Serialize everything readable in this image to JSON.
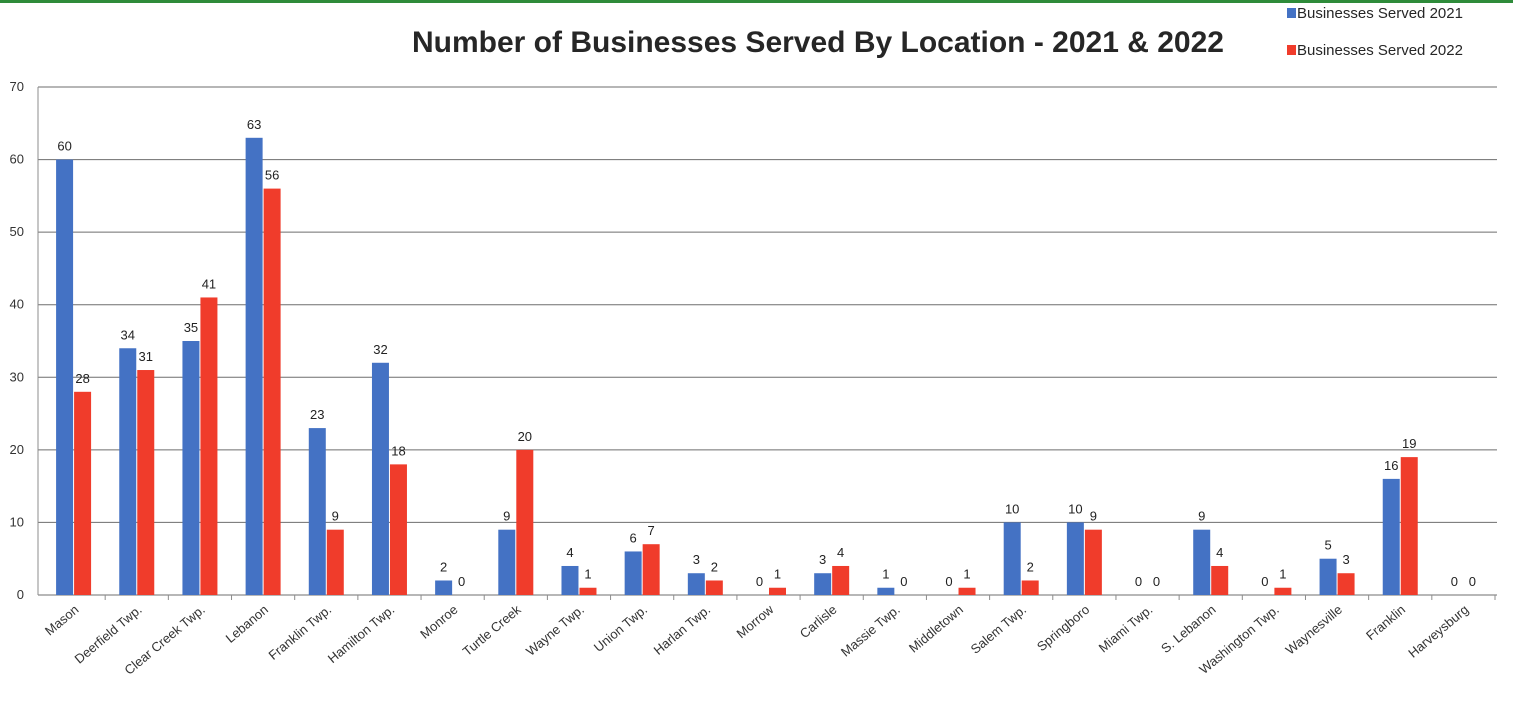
{
  "chart_data": {
    "type": "bar",
    "title": "Number of Businesses Served By Location - 2021 & 2022",
    "xlabel": "",
    "ylabel": "",
    "ylim": [
      0,
      70
    ],
    "yticks": [
      0,
      10,
      20,
      30,
      40,
      50,
      60,
      70
    ],
    "grid": true,
    "legend_position": "top-right",
    "categories": [
      "Mason",
      "Deerfield Twp.",
      "Clear Creek Twp.",
      "Lebanon",
      "Franklin Twp.",
      "Hamilton Twp.",
      "Monroe",
      "Turtle Creek",
      "Wayne Twp.",
      "Union Twp.",
      "Harlan Twp.",
      "Morrow",
      "Carlisle",
      "Massie Twp.",
      "Middletown",
      "Salem Twp.",
      "Springboro",
      "Miami Twp.",
      "S. Lebanon",
      "Washington Twp.",
      "Waynesville",
      "Franklin",
      "Harveysburg"
    ],
    "series": [
      {
        "name": "Businesses Served 2021",
        "color": "#4472c4",
        "values": [
          60,
          34,
          35,
          63,
          23,
          32,
          2,
          9,
          4,
          6,
          3,
          0,
          3,
          1,
          0,
          10,
          10,
          0,
          9,
          0,
          5,
          16,
          0
        ]
      },
      {
        "name": "Businesses Served 2022",
        "color": "#f03c2b",
        "values": [
          28,
          31,
          41,
          56,
          9,
          18,
          0,
          20,
          1,
          7,
          2,
          1,
          4,
          0,
          1,
          2,
          9,
          0,
          4,
          1,
          3,
          19,
          0
        ]
      }
    ]
  }
}
